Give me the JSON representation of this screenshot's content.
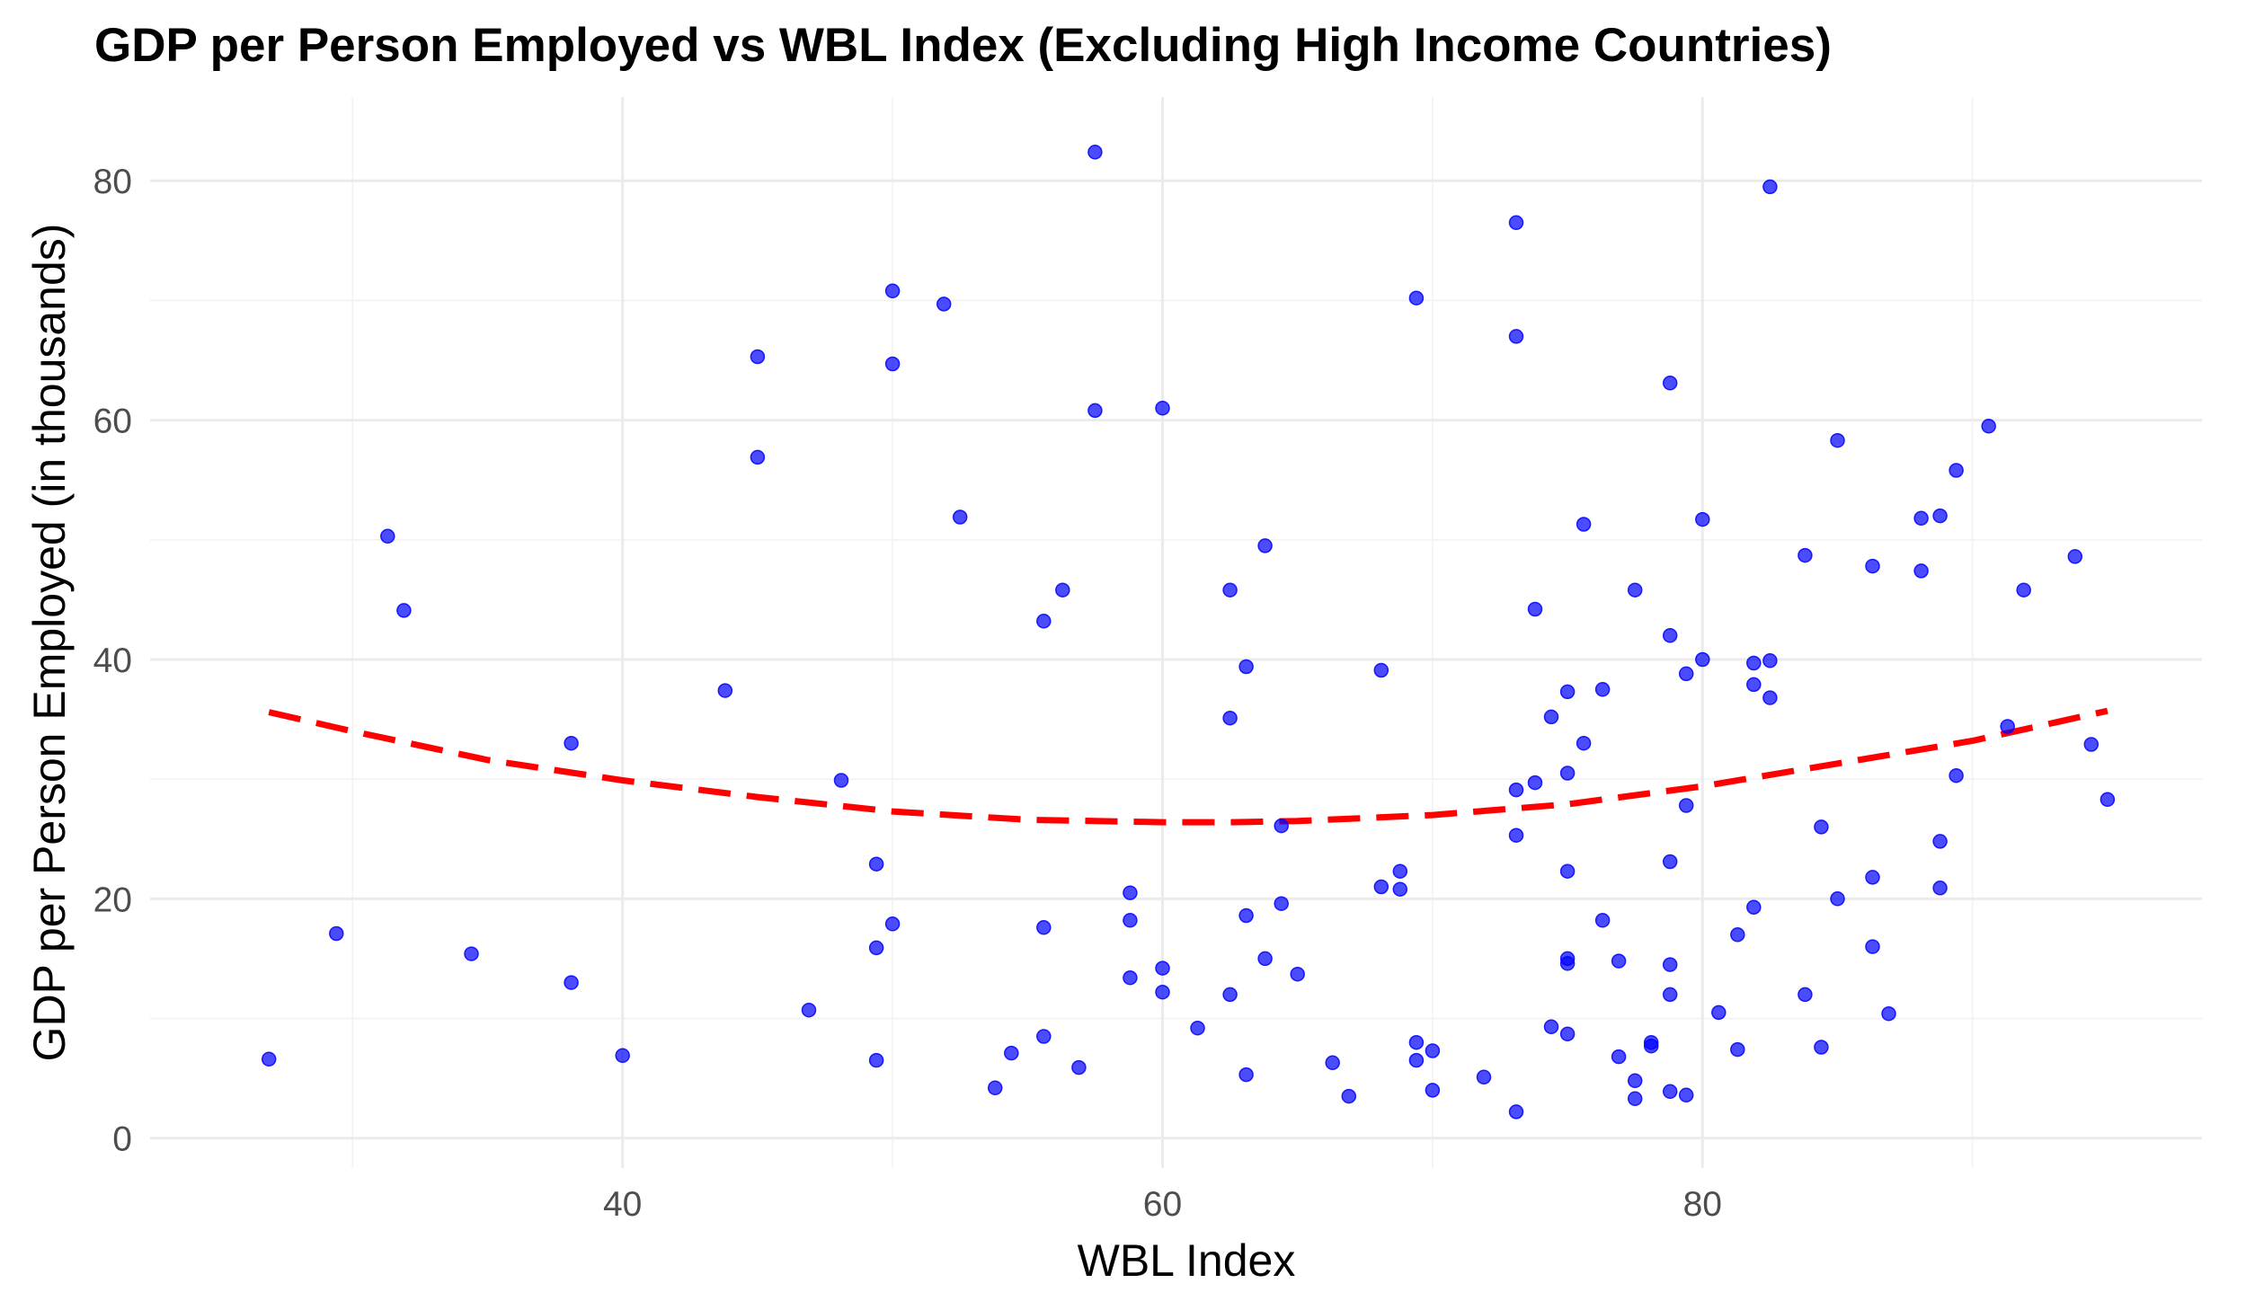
{
  "chart_data": {
    "type": "scatter",
    "title": "GDP per Person Employed vs WBL Index (Excluding High Income Countries)",
    "xlabel": "WBL Index",
    "ylabel": "GDP per Person Employed (in thousands)",
    "xlim": [
      22.5,
      98.5
    ],
    "ylim": [
      -2.5,
      87
    ],
    "x_ticks": [
      40,
      60,
      80
    ],
    "y_ticks": [
      0,
      20,
      40,
      60,
      80
    ],
    "grid": true,
    "point_color": "#0000ff",
    "trend_color": "#ff0000",
    "series": [
      {
        "points": [
          [
            26.9,
            6.6
          ],
          [
            29.4,
            17.1
          ],
          [
            31.3,
            50.3
          ],
          [
            31.9,
            44.1
          ],
          [
            34.4,
            15.4
          ],
          [
            38.1,
            33.0
          ],
          [
            38.1,
            13.0
          ],
          [
            40.0,
            6.9
          ],
          [
            43.8,
            37.4
          ],
          [
            45.0,
            65.3
          ],
          [
            45.0,
            56.9
          ],
          [
            46.9,
            10.7
          ],
          [
            48.1,
            29.9
          ],
          [
            49.4,
            22.9
          ],
          [
            49.4,
            15.9
          ],
          [
            49.4,
            6.5
          ],
          [
            50.0,
            70.8
          ],
          [
            50.0,
            64.7
          ],
          [
            50.0,
            17.9
          ],
          [
            51.9,
            69.7
          ],
          [
            52.5,
            51.9
          ],
          [
            53.8,
            4.2
          ],
          [
            54.4,
            7.1
          ],
          [
            55.6,
            43.2
          ],
          [
            55.6,
            17.6
          ],
          [
            55.6,
            8.5
          ],
          [
            56.3,
            45.8
          ],
          [
            56.9,
            5.9
          ],
          [
            57.5,
            82.4
          ],
          [
            57.5,
            60.8
          ],
          [
            58.8,
            20.5
          ],
          [
            58.8,
            18.2
          ],
          [
            58.8,
            13.4
          ],
          [
            60.0,
            61.0
          ],
          [
            60.0,
            14.2
          ],
          [
            60.0,
            12.2
          ],
          [
            61.3,
            9.2
          ],
          [
            62.5,
            45.8
          ],
          [
            62.5,
            35.1
          ],
          [
            62.5,
            12.0
          ],
          [
            63.1,
            39.4
          ],
          [
            63.1,
            18.6
          ],
          [
            63.1,
            5.3
          ],
          [
            63.8,
            49.5
          ],
          [
            63.8,
            15.0
          ],
          [
            64.4,
            26.1
          ],
          [
            64.4,
            19.6
          ],
          [
            65.0,
            13.7
          ],
          [
            66.3,
            6.3
          ],
          [
            66.9,
            3.5
          ],
          [
            68.1,
            39.1
          ],
          [
            68.1,
            21.0
          ],
          [
            68.8,
            22.3
          ],
          [
            68.8,
            20.8
          ],
          [
            69.4,
            70.2
          ],
          [
            69.4,
            8.0
          ],
          [
            69.4,
            6.5
          ],
          [
            70.0,
            7.3
          ],
          [
            70.0,
            4.0
          ],
          [
            71.9,
            5.1
          ],
          [
            73.1,
            76.5
          ],
          [
            73.1,
            67.0
          ],
          [
            73.1,
            29.1
          ],
          [
            73.1,
            25.3
          ],
          [
            73.1,
            2.2
          ],
          [
            73.8,
            44.2
          ],
          [
            73.8,
            29.7
          ],
          [
            74.4,
            35.2
          ],
          [
            74.4,
            9.3
          ],
          [
            75.0,
            37.3
          ],
          [
            75.0,
            30.5
          ],
          [
            75.0,
            22.3
          ],
          [
            75.0,
            15.0
          ],
          [
            75.0,
            14.6
          ],
          [
            75.0,
            8.7
          ],
          [
            75.6,
            51.3
          ],
          [
            75.6,
            33.0
          ],
          [
            76.3,
            37.5
          ],
          [
            76.3,
            18.2
          ],
          [
            76.9,
            14.8
          ],
          [
            76.9,
            6.8
          ],
          [
            77.5,
            45.8
          ],
          [
            77.5,
            4.8
          ],
          [
            77.5,
            3.3
          ],
          [
            78.1,
            8.0
          ],
          [
            78.1,
            7.7
          ],
          [
            78.8,
            63.1
          ],
          [
            78.8,
            42.0
          ],
          [
            78.8,
            23.1
          ],
          [
            78.8,
            14.5
          ],
          [
            78.8,
            12.0
          ],
          [
            78.8,
            3.9
          ],
          [
            79.4,
            38.8
          ],
          [
            79.4,
            27.8
          ],
          [
            79.4,
            3.6
          ],
          [
            80.0,
            51.7
          ],
          [
            80.0,
            40.0
          ],
          [
            80.6,
            10.5
          ],
          [
            81.3,
            17.0
          ],
          [
            81.3,
            7.4
          ],
          [
            81.9,
            39.7
          ],
          [
            81.9,
            37.9
          ],
          [
            81.9,
            19.3
          ],
          [
            82.5,
            79.5
          ],
          [
            82.5,
            39.9
          ],
          [
            82.5,
            36.8
          ],
          [
            83.8,
            48.7
          ],
          [
            83.8,
            12.0
          ],
          [
            84.4,
            26.0
          ],
          [
            84.4,
            7.6
          ],
          [
            85.0,
            58.3
          ],
          [
            85.0,
            20.0
          ],
          [
            86.3,
            47.8
          ],
          [
            86.3,
            21.8
          ],
          [
            86.3,
            16.0
          ],
          [
            86.9,
            10.4
          ],
          [
            88.1,
            51.8
          ],
          [
            88.1,
            47.4
          ],
          [
            88.8,
            52.0
          ],
          [
            88.8,
            24.8
          ],
          [
            88.8,
            20.9
          ],
          [
            89.4,
            55.8
          ],
          [
            89.4,
            30.3
          ],
          [
            90.6,
            59.5
          ],
          [
            91.3,
            34.4
          ],
          [
            91.9,
            45.8
          ],
          [
            93.8,
            48.6
          ],
          [
            94.4,
            32.9
          ],
          [
            95.0,
            28.3
          ]
        ]
      }
    ],
    "trend": {
      "style": "dashed",
      "x": [
        26.9,
        30,
        35,
        40,
        45,
        50,
        55,
        60,
        62.5,
        65,
        70,
        75,
        80,
        85,
        90,
        95
      ],
      "y": [
        35.6,
        34.0,
        31.6,
        29.9,
        28.5,
        27.3,
        26.6,
        26.4,
        26.4,
        26.5,
        27.0,
        27.9,
        29.4,
        31.3,
        33.2,
        35.7
      ]
    }
  }
}
